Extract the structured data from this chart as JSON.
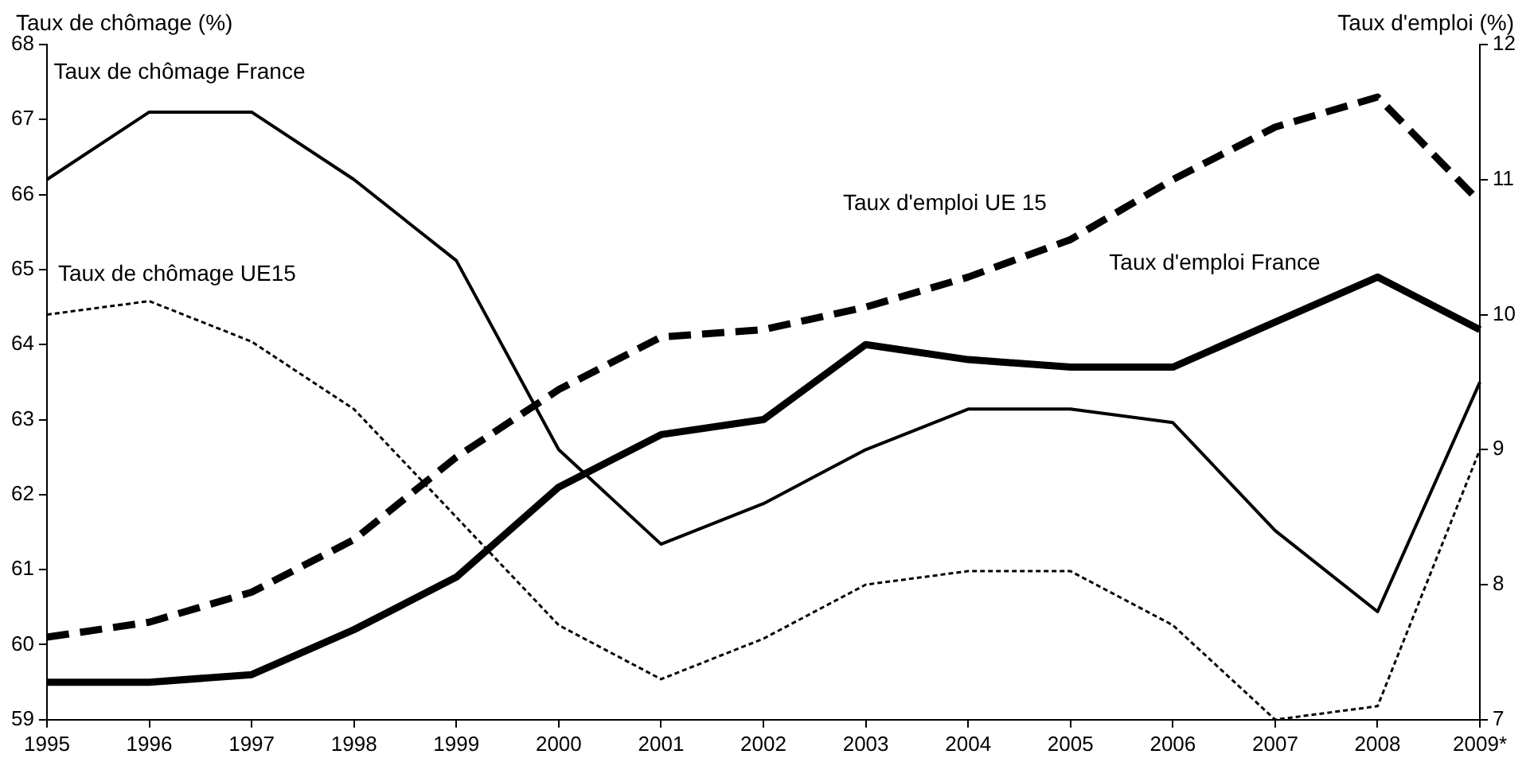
{
  "chart_data": {
    "type": "line",
    "ylabel": "Taux de chômage (%)",
    "y2label": "Taux d'emploi (%)",
    "categories": [
      "1995",
      "1996",
      "1997",
      "1998",
      "1999",
      "2000",
      "2001",
      "2002",
      "2003",
      "2004",
      "2005",
      "2006",
      "2007",
      "2008",
      "2009*"
    ],
    "ylim": [
      59,
      68
    ],
    "yticks": [
      59,
      60,
      61,
      62,
      63,
      64,
      65,
      66,
      67,
      68
    ],
    "y2lim": [
      7,
      12
    ],
    "y2ticks": [
      7,
      8,
      9,
      10,
      11,
      12
    ],
    "grid": false,
    "legend": false,
    "marker": "none",
    "series": [
      {
        "name": "Taux de chômage France",
        "color": "#000000",
        "axis": "y2",
        "line_style": "solid",
        "values": [
          11.0,
          11.5,
          11.5,
          11.0,
          10.4,
          9.0,
          8.3,
          8.6,
          9.0,
          9.3,
          9.3,
          9.2,
          8.4,
          7.8,
          9.5
        ]
      },
      {
        "name": "Taux de chômage UE15",
        "color": "#000000",
        "axis": "y2",
        "line_style": "dotted",
        "values": [
          10.0,
          10.1,
          9.8,
          9.3,
          8.5,
          7.7,
          7.3,
          7.6,
          8.0,
          8.1,
          8.1,
          7.7,
          7.0,
          7.1,
          9.0
        ]
      },
      {
        "name": "Taux d'emploi UE 15",
        "color": "#000000",
        "axis": "y",
        "line_style": "dashed",
        "values": [
          60.1,
          60.3,
          60.7,
          61.4,
          62.5,
          63.4,
          64.1,
          64.2,
          64.5,
          64.9,
          65.4,
          66.2,
          66.9,
          67.3,
          65.9
        ]
      },
      {
        "name": "Taux d'emploi France",
        "color": "#000000",
        "axis": "y",
        "line_style": "solid",
        "values": [
          59.5,
          59.5,
          59.6,
          60.2,
          60.9,
          62.1,
          62.8,
          63.0,
          64.0,
          63.8,
          63.7,
          63.7,
          64.3,
          64.9,
          64.2
        ]
      }
    ]
  }
}
